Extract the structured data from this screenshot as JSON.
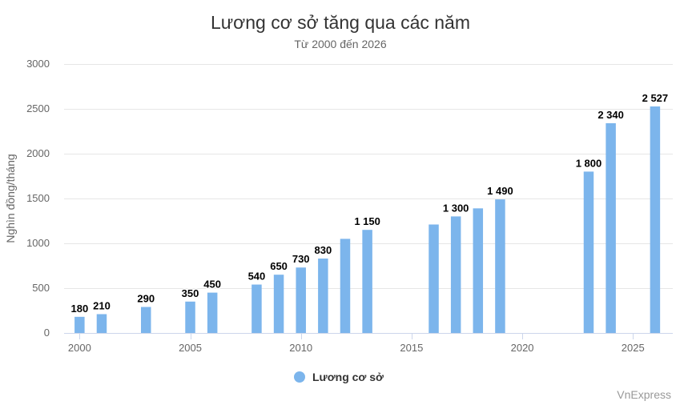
{
  "chart_data": {
    "type": "bar",
    "title": "Lương cơ sở tăng qua các năm",
    "subtitle": "Từ 2000 đến 2026",
    "ylabel": "Nghìn đồng/tháng",
    "xlabel": "",
    "x": [
      2000,
      2001,
      2003,
      2005,
      2006,
      2008,
      2009,
      2010,
      2011,
      2012,
      2013,
      2016,
      2017,
      2018,
      2019,
      2023,
      2024,
      2026
    ],
    "series": [
      {
        "name": "Lương cơ sở",
        "color": "#7cb5ec",
        "values": [
          180,
          210,
          290,
          350,
          450,
          540,
          650,
          730,
          830,
          1050,
          1150,
          1210,
          1300,
          1390,
          1490,
          1800,
          2340,
          2527
        ],
        "labels": [
          "180",
          "210",
          "290",
          "350",
          "450",
          "540",
          "650",
          "730",
          "830",
          "",
          "1 150",
          "",
          "1 300",
          "",
          "1 490",
          "1 800",
          "2 340",
          "2 527"
        ]
      }
    ],
    "xlim": [
      1999.3,
      2026.8
    ],
    "ylim": [
      0,
      3000
    ],
    "yticks": [
      0,
      500,
      1000,
      1500,
      2000,
      2500,
      3000
    ],
    "xticks": [
      2000,
      2005,
      2010,
      2015,
      2020,
      2025
    ],
    "grid": true,
    "legend_position": "bottom-center"
  },
  "credit": "VnExpress"
}
